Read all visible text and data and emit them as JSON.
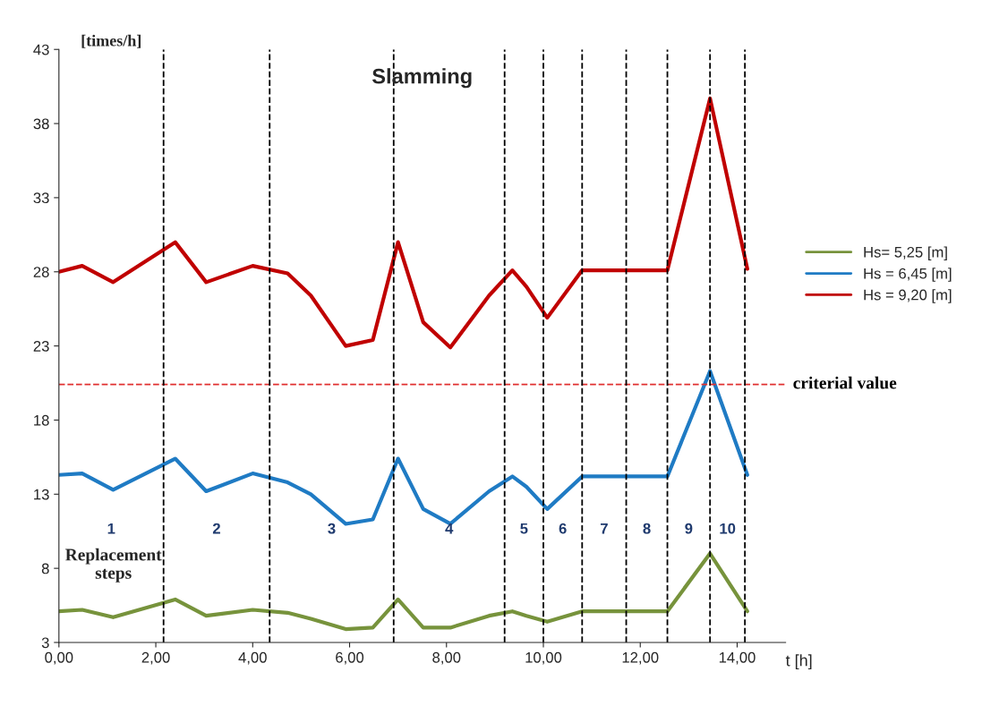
{
  "chart_data": {
    "type": "line",
    "title": "Slamming",
    "xlabel": "t [h]",
    "ylabel": "[times/h]",
    "x": [
      0,
      0.48,
      1.12,
      2.4,
      3.04,
      4.0,
      4.72,
      5.2,
      5.92,
      6.48,
      7.0,
      7.52,
      8.08,
      8.88,
      9.36,
      9.65,
      10.08,
      10.8,
      12.56,
      13.44,
      14.21
    ],
    "series": [
      {
        "name": "Hs= 5,25 [m]",
        "color": "#77933c",
        "values": [
          5.1,
          5.2,
          4.7,
          5.9,
          4.8,
          5.2,
          5.0,
          4.6,
          3.9,
          4.0,
          5.9,
          4.0,
          4.0,
          4.8,
          5.1,
          4.8,
          4.4,
          5.1,
          5.1,
          9.0,
          5.1
        ]
      },
      {
        "name": "Hs = 6,45 [m]",
        "color": "#1f7bc4",
        "values": [
          14.3,
          14.4,
          13.3,
          15.4,
          13.2,
          14.4,
          13.8,
          13.0,
          11.0,
          11.3,
          15.4,
          12.0,
          11.0,
          13.2,
          14.2,
          13.5,
          12.0,
          14.2,
          14.2,
          21.3,
          14.3
        ]
      },
      {
        "name": "Hs = 9,20 [m]",
        "color": "#c00000",
        "values": [
          28.0,
          28.4,
          27.3,
          30.0,
          27.3,
          28.4,
          27.9,
          26.4,
          23.0,
          23.4,
          30.0,
          24.6,
          22.9,
          26.4,
          28.1,
          27.0,
          24.9,
          28.1,
          28.1,
          39.7,
          28.2
        ]
      }
    ],
    "ref_lines": [
      {
        "axis": "y",
        "value": 20.4,
        "label": "criterial value",
        "color": "#e03030",
        "line_style": "dashed"
      },
      {
        "axis": "x",
        "value": 2.16,
        "color": "#000000",
        "line_style": "dashed"
      },
      {
        "axis": "x",
        "value": 4.35,
        "color": "#000000",
        "line_style": "dashed"
      },
      {
        "axis": "x",
        "value": 6.91,
        "color": "#000000",
        "line_style": "dashed"
      },
      {
        "axis": "x",
        "value": 9.2,
        "color": "#000000",
        "line_style": "dashed"
      },
      {
        "axis": "x",
        "value": 10.0,
        "color": "#000000",
        "line_style": "dashed"
      },
      {
        "axis": "x",
        "value": 10.8,
        "color": "#000000",
        "line_style": "dashed"
      },
      {
        "axis": "x",
        "value": 11.71,
        "color": "#000000",
        "line_style": "dashed"
      },
      {
        "axis": "x",
        "value": 12.56,
        "color": "#000000",
        "line_style": "dashed"
      },
      {
        "axis": "x",
        "value": 13.44,
        "color": "#000000",
        "line_style": "dashed"
      },
      {
        "axis": "x",
        "value": 14.16,
        "color": "#000000",
        "line_style": "dashed"
      }
    ],
    "annotations": [
      "1",
      "2",
      "3",
      "4",
      "5",
      "6",
      "7",
      "8",
      "9",
      "10",
      "Replacement\nsteps"
    ],
    "xlim": [
      0,
      15
    ],
    "xticks": [
      {
        "value": 0,
        "label": "0,00"
      },
      {
        "value": 2,
        "label": "2,00"
      },
      {
        "value": 4,
        "label": "4,00"
      },
      {
        "value": 6,
        "label": "6,00"
      },
      {
        "value": 8,
        "label": "8,00"
      },
      {
        "value": 10,
        "label": "10,00"
      },
      {
        "value": 12,
        "label": "12,00"
      },
      {
        "value": 14,
        "label": "14,00"
      }
    ],
    "ylim": [
      3,
      43
    ],
    "yticks": [
      3,
      8,
      13,
      18,
      23,
      28,
      33,
      38,
      43
    ],
    "grid": false,
    "legend": "right",
    "marker": "none",
    "line_style": "solid"
  }
}
